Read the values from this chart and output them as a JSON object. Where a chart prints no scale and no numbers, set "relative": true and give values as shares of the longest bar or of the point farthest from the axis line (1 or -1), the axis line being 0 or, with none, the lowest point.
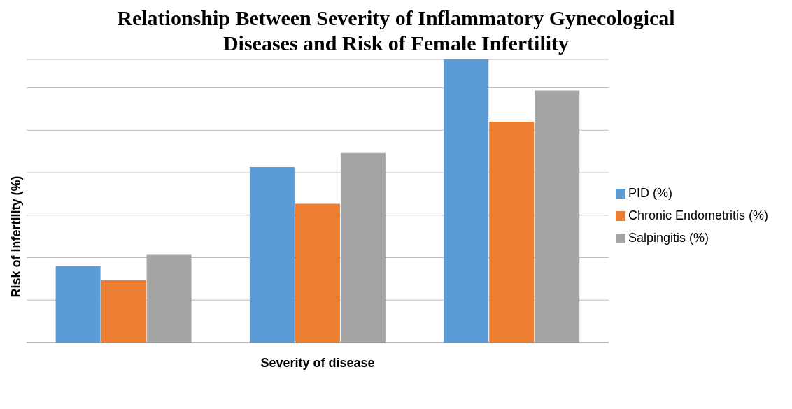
{
  "chart_data": {
    "type": "bar",
    "title": "Relationship Between Severity of Inflammatory Gynecological Diseases and Risk of Female Infertility",
    "xlabel": "Severity of disease",
    "ylabel": "Risk of infertility (%)",
    "categories": [
      null,
      null,
      null
    ],
    "relative": true,
    "grid": "y",
    "legend": "right",
    "series": [
      {
        "name": "PID (%)",
        "color": "#5b9bd5",
        "values": [
          0.27,
          0.62,
          1
        ]
      },
      {
        "name": "Chronic Endometritis (%)",
        "color": "#ed7d31",
        "values": [
          0.22,
          0.49,
          0.78
        ]
      },
      {
        "name": "Salpingitis (%)",
        "color": "#a5a5a5",
        "values": [
          0.31,
          0.67,
          0.89
        ]
      }
    ]
  }
}
